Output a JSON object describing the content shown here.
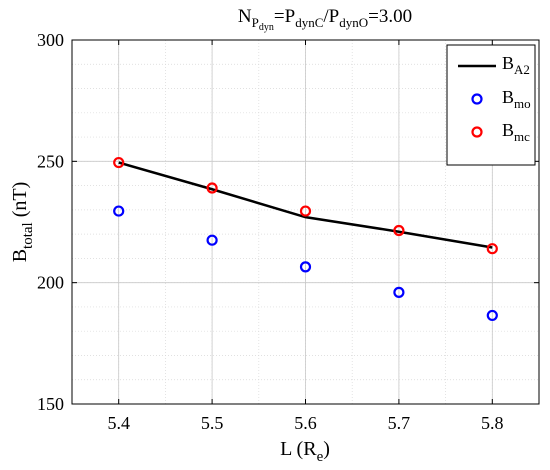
{
  "chart_data": {
    "type": "line",
    "title": {
      "parts": [
        {
          "text": "N",
          "sub": "P",
          "subsub": "dyn"
        },
        {
          "text": "=P",
          "sub": "dynC"
        },
        {
          "text": "/P",
          "sub": "dynO"
        },
        {
          "text": "=3.00"
        }
      ]
    },
    "xlabel": {
      "text": "L (R",
      "sub": "e",
      "after": ")"
    },
    "ylabel": {
      "text": "B",
      "sub": "total",
      "after": " (nT)"
    },
    "xlim": [
      5.35,
      5.85
    ],
    "ylim": [
      150,
      300
    ],
    "xticks": [
      "5.4",
      "5.5",
      "5.6",
      "5.7",
      "5.8"
    ],
    "yticks": [
      "150",
      "200",
      "250",
      "300"
    ],
    "grid": true,
    "legend_position": "top-right",
    "series": [
      {
        "name": {
          "text": "B",
          "sub": "A2"
        },
        "style": "line",
        "color": "#000000",
        "x": [
          5.4,
          5.5,
          5.6,
          5.7,
          5.8
        ],
        "y": [
          249.5,
          238.5,
          227,
          221,
          214.5
        ]
      },
      {
        "name": {
          "text": "B",
          "sub": "mo"
        },
        "style": "circle",
        "color": "#0000ff",
        "x": [
          5.4,
          5.5,
          5.6,
          5.7,
          5.8
        ],
        "y": [
          229.5,
          217.5,
          206.5,
          196,
          186.5
        ]
      },
      {
        "name": {
          "text": "B",
          "sub": "mc"
        },
        "style": "circle",
        "color": "#ff0000",
        "x": [
          5.4,
          5.5,
          5.6,
          5.7,
          5.8
        ],
        "y": [
          249.5,
          239,
          229.5,
          221.5,
          214
        ]
      }
    ]
  }
}
